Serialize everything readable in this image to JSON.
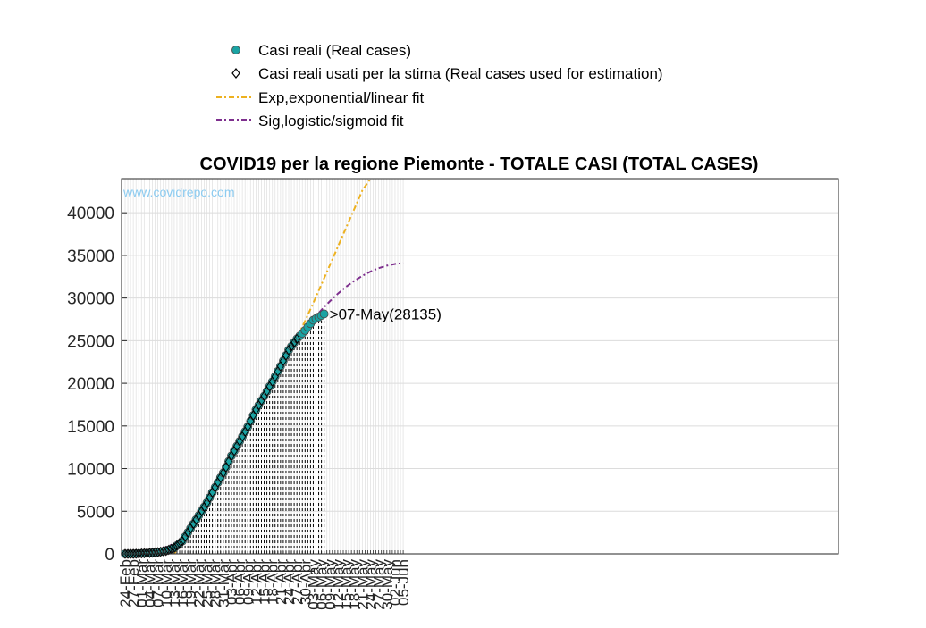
{
  "chart_data": {
    "type": "line",
    "title": "COVID19 per la regione Piemonte - TOTALE CASI (TOTAL CASES)",
    "watermark": "www.covidrepo.com",
    "annotation": ">07-May(28135)",
    "annotation_point": {
      "x": "07-May",
      "y": 28135
    },
    "xlabel": "",
    "ylabel": "",
    "ylim": [
      0,
      44000
    ],
    "yticks": [
      0,
      5000,
      10000,
      15000,
      20000,
      25000,
      30000,
      35000,
      40000
    ],
    "xticks": [
      "24-Feb",
      "27-Feb",
      "01-Mar",
      "04-Mar",
      "07-Mar",
      "10-Mar",
      "13-Mar",
      "16-Mar",
      "19-Mar",
      "22-Mar",
      "25-Mar",
      "28-Mar",
      "31-Mar",
      "03-Apr",
      "06-Apr",
      "09-Apr",
      "12-Apr",
      "15-Apr",
      "18-Apr",
      "21-Apr",
      "24-Apr",
      "27-Apr",
      "30-Apr",
      "03-May",
      "06-May",
      "09-May",
      "12-May",
      "15-May",
      "18-May",
      "21-May",
      "24-May",
      "27-May",
      "30-May",
      "02-Jun",
      "05-Jun"
    ],
    "grid": true,
    "legend_position": "top-center",
    "colors": {
      "real": "#1aa3a3",
      "estimation": "#000000",
      "exp": "#edb120",
      "sig": "#7e2f8e",
      "watermark": "#8ccbf0"
    },
    "series": [
      {
        "name": "Casi reali (Real cases)",
        "marker": "circle",
        "x": [
          "24-Feb",
          "27-Feb",
          "01-Mar",
          "04-Mar",
          "07-Mar",
          "10-Mar",
          "13-Mar",
          "16-Mar",
          "19-Mar",
          "22-Mar",
          "25-Mar",
          "28-Mar",
          "31-Mar",
          "03-Apr",
          "06-Apr",
          "09-Apr",
          "12-Apr",
          "15-Apr",
          "18-Apr",
          "21-Apr",
          "24-Apr",
          "27-Apr",
          "30-Apr",
          "03-May",
          "06-May",
          "07-May"
        ],
        "y": [
          0,
          5,
          50,
          100,
          200,
          350,
          700,
          1500,
          3000,
          4500,
          6000,
          7800,
          9500,
          11500,
          13200,
          14900,
          16900,
          18500,
          20200,
          22000,
          23900,
          25200,
          26200,
          27400,
          27950,
          28135
        ]
      },
      {
        "name": "Casi reali usati per la stima (Real cases used for estimation)",
        "marker": "diamond",
        "x": [
          "24-Feb",
          "27-Feb",
          "01-Mar",
          "04-Mar",
          "07-Mar",
          "10-Mar",
          "13-Mar",
          "16-Mar",
          "19-Mar",
          "22-Mar",
          "25-Mar",
          "28-Mar",
          "31-Mar",
          "03-Apr",
          "06-Apr",
          "09-Apr",
          "12-Apr",
          "15-Apr",
          "18-Apr",
          "21-Apr",
          "24-Apr",
          "27-Apr"
        ],
        "y": [
          0,
          5,
          50,
          100,
          200,
          350,
          700,
          1500,
          3000,
          4500,
          6000,
          7800,
          9500,
          11500,
          13200,
          14900,
          16900,
          18500,
          20200,
          22000,
          23900,
          25200
        ]
      },
      {
        "name": "Exp,exponential/linear fit",
        "line": "dash-dot",
        "x": [
          "13-Mar",
          "16-Mar",
          "19-Mar",
          "22-Mar",
          "25-Mar",
          "28-Mar",
          "31-Mar",
          "03-Apr",
          "06-Apr",
          "09-Apr",
          "12-Apr",
          "15-Apr",
          "18-Apr",
          "21-Apr",
          "24-Apr",
          "27-Apr",
          "30-Apr",
          "03-May",
          "06-May",
          "09-May",
          "12-May",
          "15-May",
          "18-May",
          "21-May",
          "24-May",
          "24-May"
        ],
        "y": [
          0,
          1500,
          3200,
          4800,
          6400,
          8000,
          9700,
          11400,
          13100,
          14800,
          16500,
          18200,
          19900,
          21600,
          23400,
          25300,
          27300,
          29400,
          31600,
          33800,
          36000,
          38200,
          40400,
          42600,
          44000,
          44000
        ]
      },
      {
        "name": "Sig,logistic/sigmoid fit",
        "line": "dash-dot",
        "x": [
          "24-Feb",
          "27-Feb",
          "01-Mar",
          "04-Mar",
          "07-Mar",
          "10-Mar",
          "13-Mar",
          "16-Mar",
          "19-Mar",
          "22-Mar",
          "25-Mar",
          "28-Mar",
          "31-Mar",
          "03-Apr",
          "06-Apr",
          "09-Apr",
          "12-Apr",
          "15-Apr",
          "18-Apr",
          "21-Apr",
          "24-Apr",
          "27-Apr",
          "30-Apr",
          "03-May",
          "06-May",
          "09-May",
          "12-May",
          "15-May",
          "18-May",
          "21-May",
          "24-May",
          "27-May",
          "30-May",
          "02-Jun",
          "05-Jun"
        ],
        "y": [
          100,
          150,
          230,
          350,
          530,
          800,
          1200,
          1800,
          2800,
          4100,
          5700,
          7500,
          9400,
          11400,
          13400,
          15300,
          17200,
          19000,
          20700,
          22300,
          23800,
          25100,
          26400,
          27500,
          28600,
          29600,
          30500,
          31300,
          32000,
          32600,
          33100,
          33500,
          33800,
          34000,
          34100
        ]
      }
    ]
  }
}
